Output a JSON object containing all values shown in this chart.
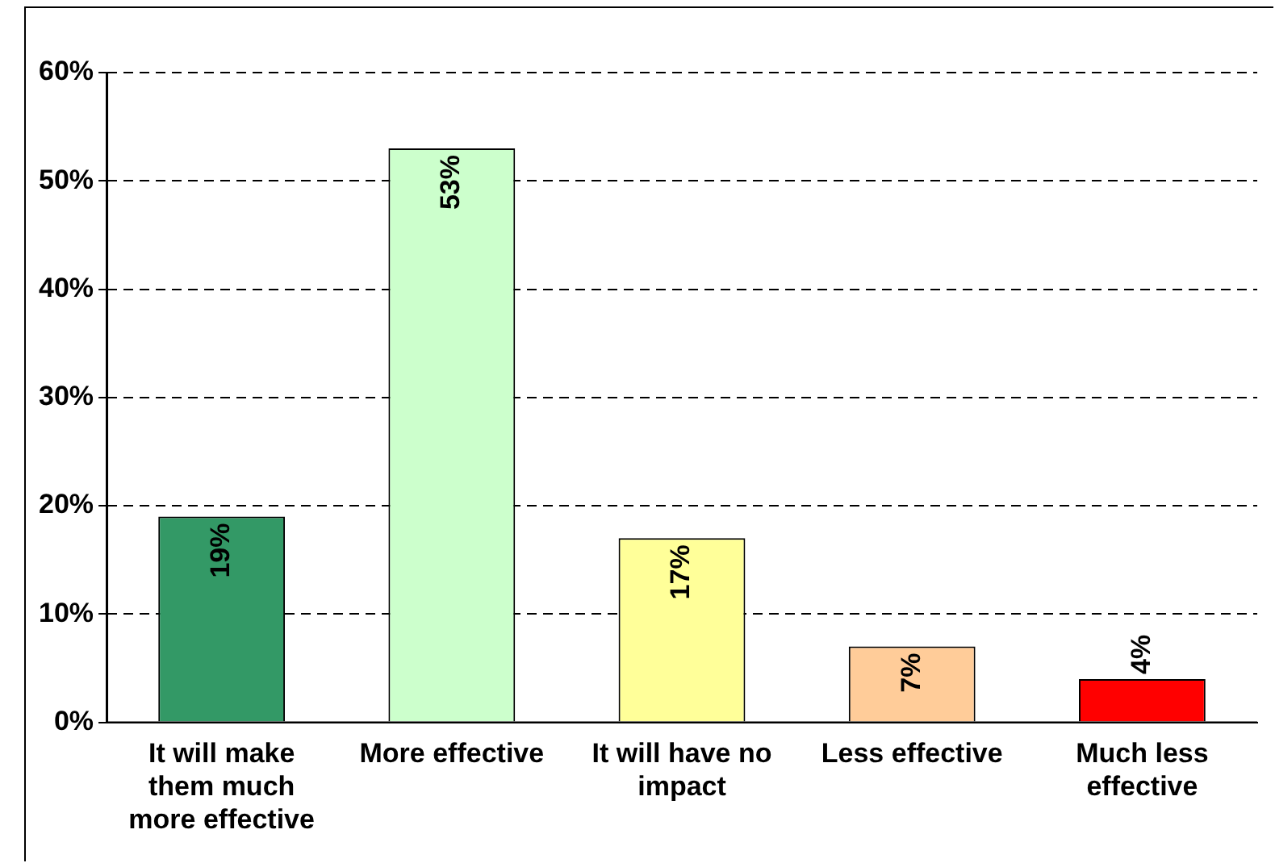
{
  "chart_data": {
    "type": "bar",
    "categories": [
      "It will make them much more effective",
      "More effective",
      "It will have no impact",
      "Less effective",
      "Much less effective"
    ],
    "values": [
      19,
      53,
      17,
      7,
      4
    ],
    "colors": [
      "#339966",
      "#ccffcc",
      "#ffff99",
      "#ffcc99",
      "#ff0000"
    ],
    "value_labels": [
      "19%",
      "53%",
      "17%",
      "7%",
      "4%"
    ],
    "ylim": [
      0,
      60
    ],
    "yticks": [
      {
        "value": 0,
        "label": "0%"
      },
      {
        "value": 10,
        "label": "10%"
      },
      {
        "value": 20,
        "label": "20%"
      },
      {
        "value": 30,
        "label": "30%"
      },
      {
        "value": 40,
        "label": "40%"
      },
      {
        "value": 50,
        "label": "50%"
      },
      {
        "value": 60,
        "label": "60%"
      }
    ],
    "grid": "y",
    "legend": false
  }
}
